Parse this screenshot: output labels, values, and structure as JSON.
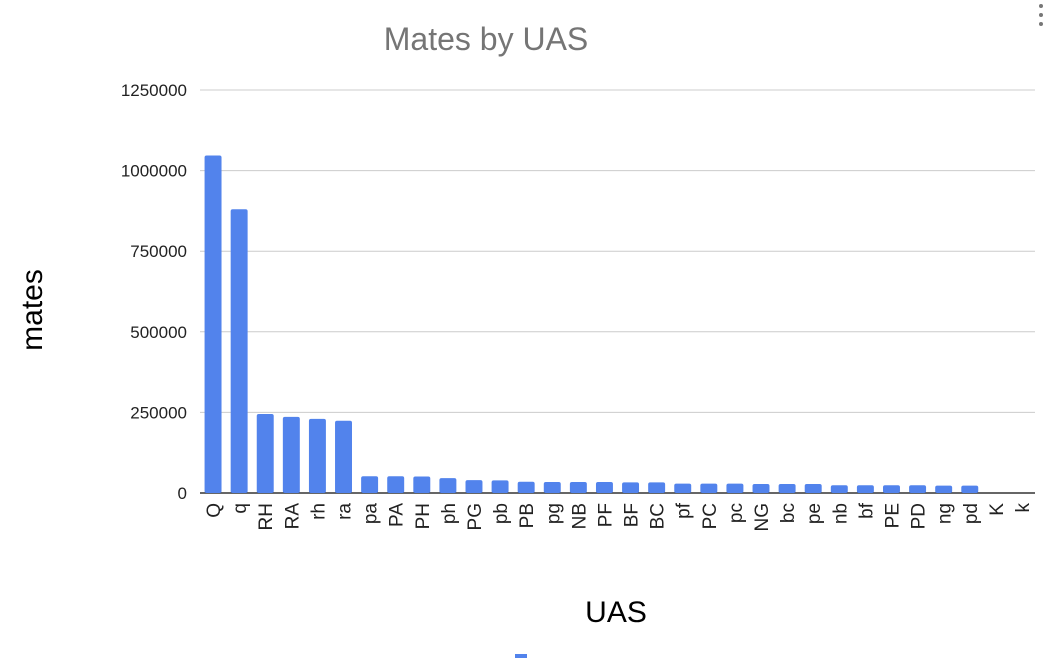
{
  "chart_data": {
    "type": "bar",
    "title": "Mates by UAS",
    "xlabel": "UAS",
    "ylabel": "mates",
    "ylim": [
      0,
      1250000
    ],
    "yticks": [
      0,
      250000,
      500000,
      750000,
      1000000,
      1250000
    ],
    "ytick_labels": [
      "0",
      "250000",
      "500000",
      "750000",
      "1000000",
      "1250000"
    ],
    "grid": true,
    "bar_color": "#5283ec",
    "categories": [
      "Q",
      "q",
      "RH",
      "RA",
      "rh",
      "ra",
      "pa",
      "PA",
      "PH",
      "ph",
      "PG",
      "pb",
      "PB",
      "pg",
      "NB",
      "PF",
      "BF",
      "BC",
      "pf",
      "PC",
      "pc",
      "NG",
      "bc",
      "pe",
      "nb",
      "bf",
      "PE",
      "PD",
      "ng",
      "pd",
      "K",
      "k"
    ],
    "values": [
      1047000,
      880000,
      245000,
      236000,
      230000,
      224000,
      52000,
      52000,
      51000,
      46000,
      40000,
      39000,
      35000,
      34000,
      34000,
      34000,
      33000,
      33000,
      29000,
      29000,
      29000,
      28000,
      28000,
      28000,
      24000,
      24000,
      24000,
      24000,
      23000,
      23000,
      0,
      0
    ]
  },
  "menu_icon": "more-vert-icon"
}
